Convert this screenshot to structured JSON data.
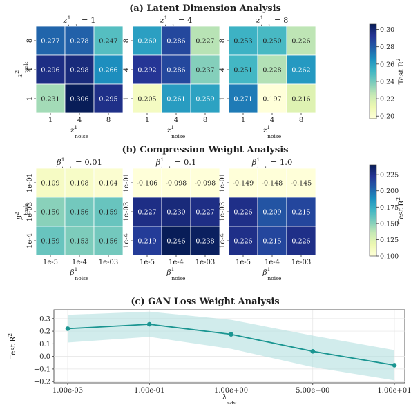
{
  "sections": [
    {
      "title": "(a) Latent Dimension Analysis",
      "x_label_main": "z",
      "x_label_sup": "1",
      "x_label_sub": "noise",
      "y_label_main": "z",
      "y_label_sup": "2",
      "y_label_sub": "task",
      "colorbar": {
        "label": "Test R",
        "label_sup": "2",
        "ticks": [
          "0.20",
          "0.22",
          "0.24",
          "0.26",
          "0.28",
          "0.30"
        ],
        "tick_values": [
          0.2,
          0.22,
          0.24,
          0.26,
          0.28,
          0.3
        ],
        "range": [
          0.197,
          0.306
        ]
      },
      "panels": [
        {
          "title_main": "z",
          "title_sup": "1",
          "title_sub": "task",
          "title_value": " = 1",
          "xticks": [
            "1",
            "4",
            "8"
          ],
          "yticks": [
            "8",
            "4",
            "1"
          ],
          "cells": [
            [
              "0.277",
              "0.278",
              "0.247"
            ],
            [
              "0.296",
              "0.298",
              "0.266"
            ],
            [
              "0.231",
              "0.306",
              "0.295"
            ]
          ],
          "values": [
            [
              0.277,
              0.278,
              0.247
            ],
            [
              0.296,
              0.298,
              0.266
            ],
            [
              0.231,
              0.306,
              0.295
            ]
          ]
        },
        {
          "title_main": "z",
          "title_sup": "1",
          "title_sub": "task",
          "title_value": " = 4",
          "xticks": [
            "1",
            "4",
            "8"
          ],
          "yticks": [
            "8",
            "4",
            "1"
          ],
          "cells": [
            [
              "0.260",
              "0.286",
              "0.227"
            ],
            [
              "0.292",
              "0.286",
              "0.237"
            ],
            [
              "0.205",
              "0.261",
              "0.259"
            ]
          ],
          "values": [
            [
              0.26,
              0.286,
              0.227
            ],
            [
              0.292,
              0.286,
              0.237
            ],
            [
              0.205,
              0.261,
              0.259
            ]
          ]
        },
        {
          "title_main": "z",
          "title_sup": "1",
          "title_sub": "task",
          "title_value": " = 8",
          "xticks": [
            "1",
            "4",
            "8"
          ],
          "yticks": [
            "8",
            "4",
            "1"
          ],
          "cells": [
            [
              "0.253",
              "0.250",
              "0.226"
            ],
            [
              "0.251",
              "0.228",
              "0.262"
            ],
            [
              "0.271",
              "0.197",
              "0.216"
            ]
          ],
          "values": [
            [
              0.253,
              0.25,
              0.226
            ],
            [
              0.251,
              0.228,
              0.262
            ],
            [
              0.271,
              0.197,
              0.216
            ]
          ]
        }
      ]
    },
    {
      "title": "(b) Compression Weight Analysis",
      "x_label_main": "β",
      "x_label_sup": "1",
      "x_label_sub": "noise",
      "y_label_main": "β",
      "y_label_sup": "2",
      "y_label_sub": "task",
      "colorbar": {
        "label": "Test R",
        "label_sup": "2",
        "ticks": [
          "0.100",
          "0.125",
          "0.150",
          "0.175",
          "0.200",
          "0.225"
        ],
        "tick_values": [
          0.1,
          0.125,
          0.15,
          0.175,
          0.2,
          0.225
        ],
        "range": [
          0.1,
          0.24
        ]
      },
      "panels": [
        {
          "title_main": "β",
          "title_sup": "1",
          "title_sub": "task",
          "title_value": " = 0.01",
          "xticks": [
            "1e-5",
            "1e-4",
            "1e-03"
          ],
          "yticks": [
            "1e-01",
            "1e-03",
            "1e-4"
          ],
          "cells": [
            [
              "0.109",
              "0.108",
              "0.104"
            ],
            [
              "0.150",
              "0.156",
              "0.159"
            ],
            [
              "0.159",
              "0.153",
              "0.156"
            ]
          ],
          "values": [
            [
              0.109,
              0.108,
              0.104
            ],
            [
              0.15,
              0.156,
              0.159
            ],
            [
              0.159,
              0.153,
              0.156
            ]
          ]
        },
        {
          "title_main": "β",
          "title_sup": "1",
          "title_sub": "task",
          "title_value": " = 0.1",
          "xticks": [
            "1e-5",
            "1e-4",
            "1e-03"
          ],
          "yticks": [
            "1e-01",
            "1e-03",
            "1e-4"
          ],
          "cells": [
            [
              "-0.106",
              "-0.098",
              "-0.098"
            ],
            [
              "0.227",
              "0.230",
              "0.227"
            ],
            [
              "0.219",
              "0.246",
              "0.238"
            ]
          ],
          "values": [
            [
              -0.106,
              -0.098,
              -0.098
            ],
            [
              0.227,
              0.23,
              0.227
            ],
            [
              0.219,
              0.246,
              0.238
            ]
          ]
        },
        {
          "title_main": "β",
          "title_sup": "1",
          "title_sub": "task",
          "title_value": " = 1.0",
          "xticks": [
            "1e-5",
            "1e-4",
            "1e-03"
          ],
          "yticks": [
            "1e-01",
            "1e-03",
            "1e-4"
          ],
          "cells": [
            [
              "-0.149",
              "-0.148",
              "-0.145"
            ],
            [
              "0.226",
              "0.209",
              "0.215"
            ],
            [
              "0.226",
              "0.215",
              "0.226"
            ]
          ],
          "values": [
            [
              -0.149,
              -0.148,
              -0.145
            ],
            [
              0.226,
              0.209,
              0.215
            ],
            [
              0.226,
              0.215,
              0.226
            ]
          ]
        }
      ]
    }
  ],
  "line_chart": {
    "title": "(c) GAN Loss Weight Analysis",
    "y_label": "Test R",
    "y_label_sup": "2",
    "x_label_main": "λ",
    "x_label_sub": "adv",
    "xticks": [
      "1.00e-03",
      "1.00e-01",
      "1.00e+00",
      "5.00e+00",
      "1.00e+01"
    ],
    "yticks": [
      "0.3",
      "0.2",
      "0.1",
      "0.0",
      "−0.1",
      "−0.2"
    ],
    "ytick_values": [
      0.3,
      0.2,
      0.1,
      0.0,
      -0.1,
      -0.2
    ],
    "ylim": [
      -0.21,
      0.37
    ],
    "line_color": "#1a9591",
    "band_color": "#b3dfe0"
  },
  "chart_data": [
    {
      "type": "heatmap",
      "title": "(a) Latent Dimension Analysis",
      "xlabel": "z1 noise",
      "ylabel": "z2 task",
      "colorbar_label": "Test R2",
      "facets": [
        "z1 task = 1",
        "z1 task = 4",
        "z1 task = 8"
      ],
      "x": [
        "1",
        "4",
        "8"
      ],
      "y": [
        "8",
        "4",
        "1"
      ],
      "values": [
        [
          [
            0.277,
            0.278,
            0.247
          ],
          [
            0.296,
            0.298,
            0.266
          ],
          [
            0.231,
            0.306,
            0.295
          ]
        ],
        [
          [
            0.26,
            0.286,
            0.227
          ],
          [
            0.292,
            0.286,
            0.237
          ],
          [
            0.205,
            0.261,
            0.259
          ]
        ],
        [
          [
            0.253,
            0.25,
            0.226
          ],
          [
            0.251,
            0.228,
            0.262
          ],
          [
            0.271,
            0.197,
            0.216
          ]
        ]
      ],
      "color_range": [
        0.197,
        0.306
      ],
      "colormap": "YlGnBu"
    },
    {
      "type": "heatmap",
      "title": "(b) Compression Weight Analysis",
      "xlabel": "β1 noise",
      "ylabel": "β2 task",
      "colorbar_label": "Test R2",
      "facets": [
        "β1 task = 0.01",
        "β1 task = 0.1",
        "β1 task = 1.0"
      ],
      "x": [
        "1e-5",
        "1e-4",
        "1e-03"
      ],
      "y": [
        "1e-01",
        "1e-03",
        "1e-4"
      ],
      "values": [
        [
          [
            0.109,
            0.108,
            0.104
          ],
          [
            0.15,
            0.156,
            0.159
          ],
          [
            0.159,
            0.153,
            0.156
          ]
        ],
        [
          [
            -0.106,
            -0.098,
            -0.098
          ],
          [
            0.227,
            0.23,
            0.227
          ],
          [
            0.219,
            0.246,
            0.238
          ]
        ],
        [
          [
            -0.149,
            -0.148,
            -0.145
          ],
          [
            0.226,
            0.209,
            0.215
          ],
          [
            0.226,
            0.215,
            0.226
          ]
        ]
      ],
      "color_range": [
        0.1,
        0.24
      ],
      "colormap": "YlGnBu"
    },
    {
      "type": "line",
      "title": "(c) GAN Loss Weight Analysis",
      "xlabel": "λ adv",
      "ylabel": "Test R2",
      "categories": [
        "1.00e-03",
        "1.00e-01",
        "1.00e+00",
        "5.00e+00",
        "1.00e+01"
      ],
      "values": [
        0.22,
        0.255,
        0.175,
        0.04,
        -0.07
      ],
      "band_upper": [
        0.33,
        0.355,
        0.29,
        0.165,
        0.05
      ],
      "band_lower": [
        0.11,
        0.155,
        0.06,
        -0.085,
        -0.19
      ],
      "ylim": [
        -0.21,
        0.37
      ],
      "grid": true
    }
  ]
}
